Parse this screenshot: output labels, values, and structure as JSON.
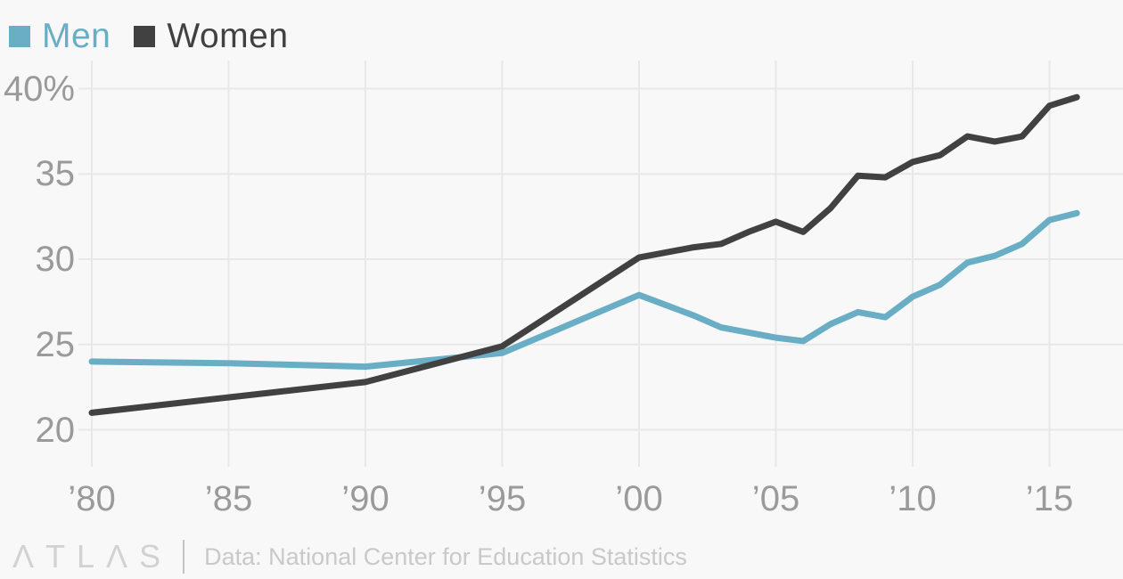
{
  "colors": {
    "background": "#f8f8f8",
    "gridline": "#e8e8e8",
    "tick_label": "#9a9a9a",
    "men": "#69AEC5",
    "women": "#414141",
    "footer_text": "#c9c9c9"
  },
  "legend": {
    "items": [
      {
        "label": "Men",
        "color": "#69AEC5",
        "text_color": "#69AEC5"
      },
      {
        "label": "Women",
        "color": "#414141",
        "text_color": "#414141"
      }
    ]
  },
  "chart_data": {
    "type": "line",
    "title": "",
    "xlabel": "",
    "ylabel": "",
    "grid": true,
    "legend_position": "top-left",
    "xlim": [
      1980,
      2017.7
    ],
    "ylim": [
      17.8,
      41.6
    ],
    "y_ticks": [
      {
        "value": 40,
        "label": "40%"
      },
      {
        "value": 35,
        "label": "35"
      },
      {
        "value": 30,
        "label": "30"
      },
      {
        "value": 25,
        "label": "25"
      },
      {
        "value": 20,
        "label": "20"
      }
    ],
    "x_ticks": [
      {
        "value": 1980,
        "label": "’80"
      },
      {
        "value": 1985,
        "label": "’85"
      },
      {
        "value": 1990,
        "label": "’90"
      },
      {
        "value": 1995,
        "label": "’95"
      },
      {
        "value": 2000,
        "label": "’00"
      },
      {
        "value": 2005,
        "label": "’05"
      },
      {
        "value": 2010,
        "label": "’10"
      },
      {
        "value": 2015,
        "label": "’15"
      }
    ],
    "series": [
      {
        "name": "Men",
        "color": "#69AEC5",
        "points": [
          [
            1980,
            24.0
          ],
          [
            1985,
            23.9
          ],
          [
            1990,
            23.7
          ],
          [
            1995,
            24.5
          ],
          [
            2000,
            27.9
          ],
          [
            2001,
            27.3
          ],
          [
            2002,
            26.7
          ],
          [
            2003,
            26.0
          ],
          [
            2004,
            25.7
          ],
          [
            2005,
            25.4
          ],
          [
            2006,
            25.2
          ],
          [
            2007,
            26.2
          ],
          [
            2008,
            26.9
          ],
          [
            2009,
            26.6
          ],
          [
            2010,
            27.8
          ],
          [
            2011,
            28.5
          ],
          [
            2012,
            29.8
          ],
          [
            2013,
            30.2
          ],
          [
            2014,
            30.9
          ],
          [
            2015,
            32.3
          ],
          [
            2016,
            32.7
          ]
        ]
      },
      {
        "name": "Women",
        "color": "#414141",
        "points": [
          [
            1980,
            21.0
          ],
          [
            1985,
            21.9
          ],
          [
            1990,
            22.8
          ],
          [
            1995,
            24.9
          ],
          [
            2000,
            30.1
          ],
          [
            2001,
            30.4
          ],
          [
            2002,
            30.7
          ],
          [
            2003,
            30.9
          ],
          [
            2004,
            31.6
          ],
          [
            2005,
            32.2
          ],
          [
            2006,
            31.6
          ],
          [
            2007,
            33.0
          ],
          [
            2008,
            34.9
          ],
          [
            2009,
            34.8
          ],
          [
            2010,
            35.7
          ],
          [
            2011,
            36.1
          ],
          [
            2012,
            37.2
          ],
          [
            2013,
            36.9
          ],
          [
            2014,
            37.2
          ],
          [
            2015,
            39.0
          ],
          [
            2016,
            39.5
          ]
        ]
      }
    ]
  },
  "footer": {
    "logo": "ΛTLΛS",
    "source": "Data: National Center for Education Statistics"
  }
}
